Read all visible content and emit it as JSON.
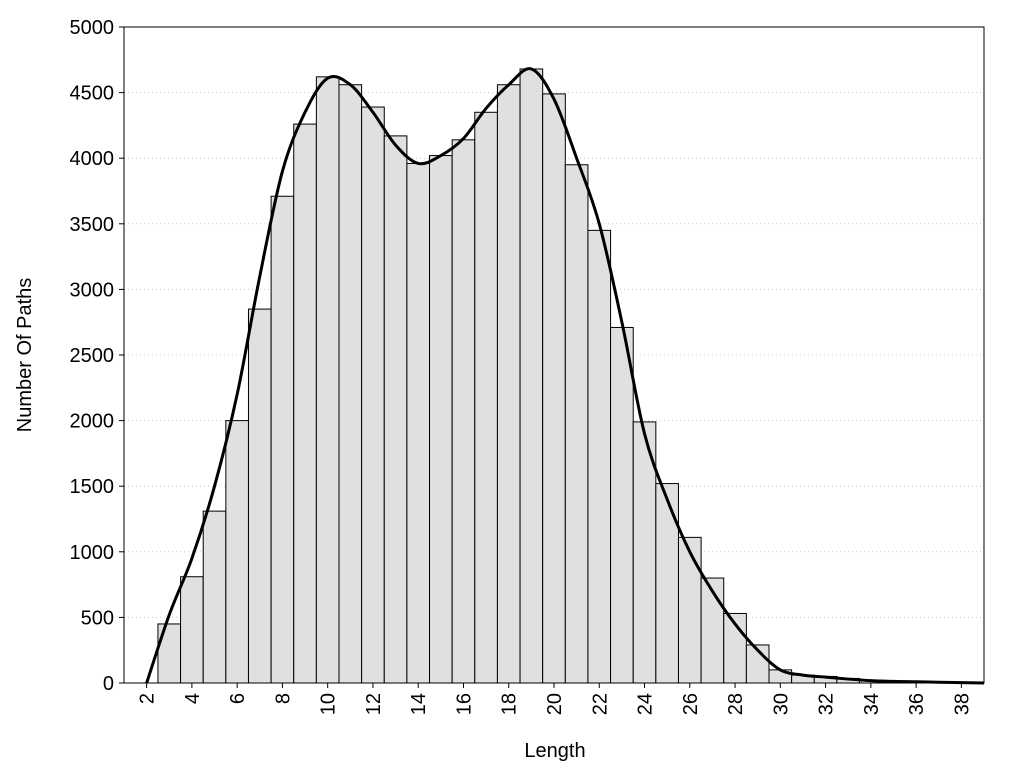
{
  "chart_data": {
    "type": "histogram",
    "x_label": "Length",
    "y_label": "Number Of Paths",
    "bins": [
      2.5,
      3.5,
      4.5,
      5.5,
      6.5,
      7.5,
      8.5,
      9.5,
      10.5,
      11.5,
      12.5,
      13.5,
      14.5,
      15.5,
      16.5,
      17.5,
      18.5,
      19.5,
      20.5,
      21.5,
      22.5,
      23.5,
      24.5,
      25.5,
      26.5,
      27.5,
      28.5,
      29.5,
      30.5,
      31.5,
      32.5,
      33.5,
      34.5,
      35.5,
      36.5,
      37.5,
      38.5
    ],
    "values": [
      450,
      810,
      1310,
      2000,
      2850,
      3710,
      4260,
      4620,
      4560,
      4390,
      4170,
      3960,
      4020,
      4140,
      4350,
      4560,
      4680,
      4490,
      3950,
      3450,
      2710,
      1990,
      1520,
      1110,
      800,
      530,
      290,
      100,
      60,
      50,
      35,
      20,
      10,
      8,
      5,
      3
    ],
    "color": "#e0e0e0",
    "line": {
      "color": "#000000",
      "x": [
        2,
        3,
        4,
        5,
        6,
        7,
        8,
        9,
        10,
        11,
        12,
        13,
        14,
        15,
        16,
        17,
        18,
        19,
        20,
        21,
        22,
        23,
        24,
        25,
        26,
        27,
        28,
        29,
        30,
        31,
        32,
        33,
        34,
        35,
        36,
        37,
        38,
        39
      ],
      "values": [
        0,
        520,
        950,
        1500,
        2200,
        3100,
        3900,
        4350,
        4610,
        4560,
        4350,
        4100,
        3960,
        4020,
        4150,
        4380,
        4560,
        4680,
        4450,
        4000,
        3500,
        2750,
        1900,
        1400,
        1000,
        700,
        450,
        250,
        100,
        60,
        45,
        30,
        18,
        12,
        10,
        6,
        3,
        0
      ]
    },
    "xlim": [
      1,
      39
    ],
    "xticks": [
      2,
      4,
      6,
      8,
      10,
      12,
      14,
      16,
      18,
      20,
      22,
      24,
      26,
      28,
      30,
      32,
      34,
      36,
      38
    ],
    "ylim": [
      0,
      5000
    ],
    "yticks": [
      0,
      500,
      1000,
      1500,
      2000,
      2500,
      3000,
      3500,
      4000,
      4500,
      5000
    ],
    "grid": true
  }
}
